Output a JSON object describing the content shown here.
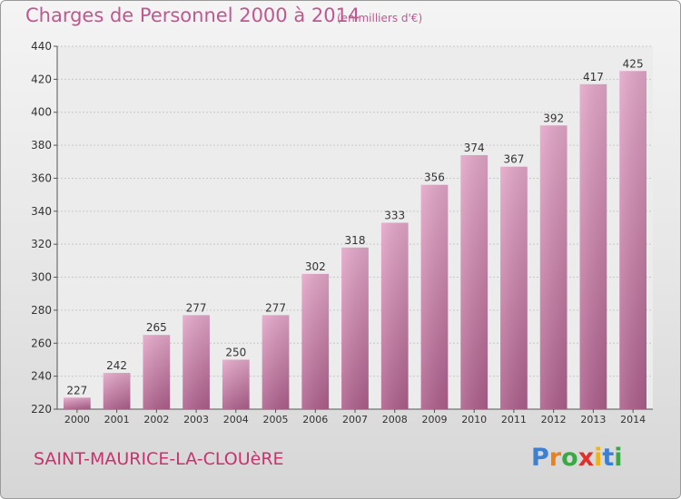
{
  "chart_data": {
    "type": "bar",
    "title": "Charges de Personnel 2000 à 2014",
    "subtitle": "(en milliers d'€)",
    "categories": [
      "2000",
      "2001",
      "2002",
      "2003",
      "2004",
      "2005",
      "2006",
      "2007",
      "2008",
      "2009",
      "2010",
      "2011",
      "2012",
      "2013",
      "2014"
    ],
    "values": [
      227,
      242,
      265,
      277,
      250,
      277,
      302,
      318,
      333,
      356,
      374,
      367,
      392,
      417,
      425
    ],
    "ylim": [
      220,
      440
    ],
    "yticks": [
      220,
      240,
      260,
      280,
      300,
      320,
      340,
      360,
      380,
      400,
      420,
      440
    ],
    "xlabel": "",
    "ylabel": "",
    "grid": true,
    "bar_color": "#c4689a"
  },
  "footer": {
    "town": "SAINT-MAURICE-LA-CLOUèRE",
    "logo_letters": [
      "P",
      "r",
      "o",
      "x",
      "i",
      "t",
      "i"
    ],
    "logo_colors": [
      "#3d7fd1",
      "#e8821e",
      "#3aa845",
      "#e0302b",
      "#f0b418",
      "#3d7fd1",
      "#3aa845"
    ]
  }
}
